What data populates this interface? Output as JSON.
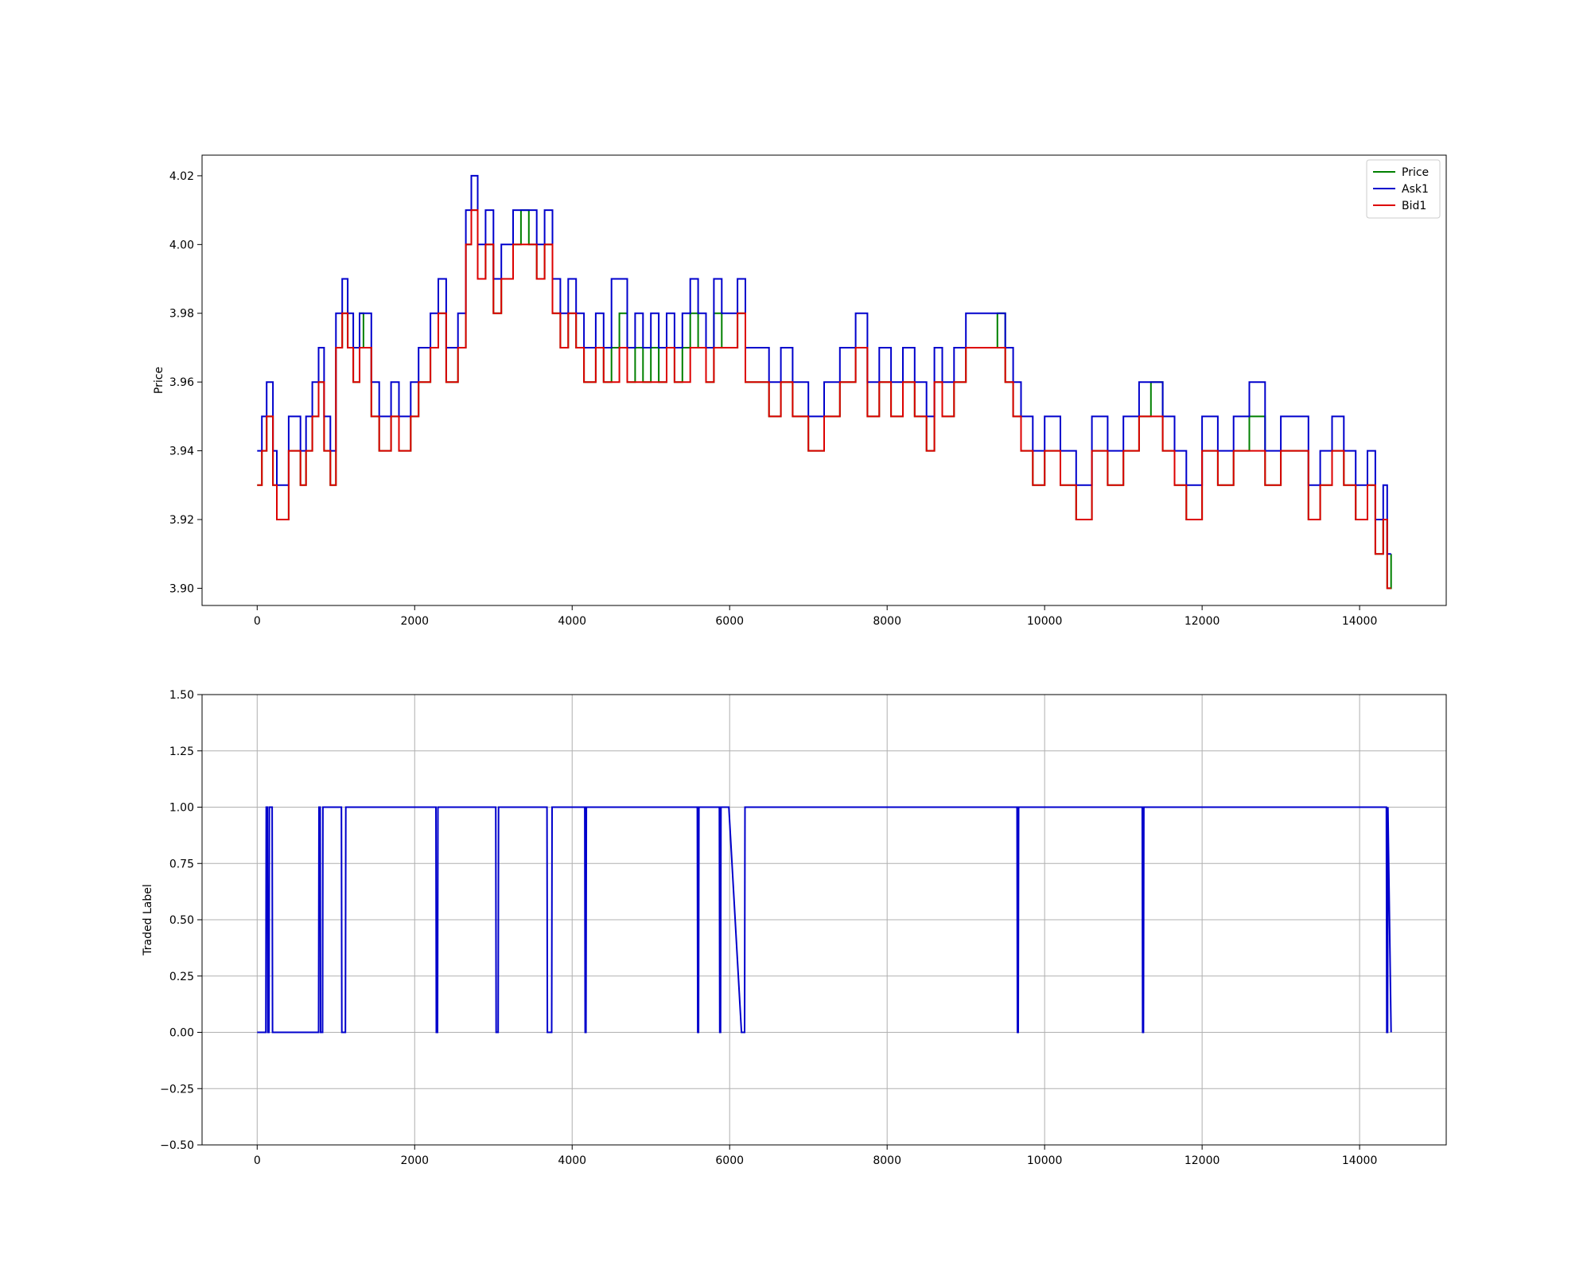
{
  "chart_data": [
    {
      "type": "line",
      "title": "",
      "xlabel": "",
      "ylabel": "Price",
      "xlim": [
        -700,
        15100
      ],
      "ylim": [
        3.895,
        4.026
      ],
      "xticks": [
        0,
        2000,
        4000,
        6000,
        8000,
        10000,
        12000,
        14000
      ],
      "xtick_labels": [
        "0",
        "2000",
        "4000",
        "6000",
        "8000",
        "10000",
        "12000",
        "14000"
      ],
      "yticks": [
        3.9,
        3.92,
        3.94,
        3.96,
        3.98,
        4.0,
        4.02
      ],
      "ytick_labels": [
        "3.90",
        "3.92",
        "3.94",
        "3.96",
        "3.98",
        "4.00",
        "4.02"
      ],
      "grid": false,
      "legend": "top-right",
      "line_style": "steps",
      "series": [
        {
          "name": "Price",
          "color": "#008000",
          "x": [
            0,
            60,
            120,
            200,
            250,
            400,
            550,
            620,
            700,
            780,
            850,
            930,
            1000,
            1080,
            1150,
            1220,
            1300,
            1350,
            1450,
            1550,
            1700,
            1800,
            1950,
            2050,
            2200,
            2300,
            2400,
            2550,
            2650,
            2720,
            2800,
            2900,
            3000,
            3100,
            3250,
            3350,
            3450,
            3550,
            3650,
            3750,
            3850,
            3950,
            4050,
            4150,
            4300,
            4400,
            4500,
            4600,
            4700,
            4800,
            4900,
            5000,
            5100,
            5200,
            5300,
            5400,
            5500,
            5600,
            5700,
            5800,
            5900,
            6000,
            6100,
            6200,
            6350,
            6500,
            6650,
            6800,
            7000,
            7200,
            7400,
            7600,
            7750,
            7900,
            8050,
            8200,
            8350,
            8500,
            8600,
            8700,
            8850,
            9000,
            9200,
            9400,
            9500,
            9600,
            9700,
            9850,
            10000,
            10200,
            10400,
            10600,
            10800,
            11000,
            11200,
            11350,
            11500,
            11650,
            11800,
            12000,
            12200,
            12400,
            12600,
            12800,
            13000,
            13200,
            13350,
            13500,
            13650,
            13800,
            13950,
            14100,
            14200,
            14300,
            14350,
            14400
          ],
          "y": [
            3.93,
            3.94,
            3.95,
            3.93,
            3.92,
            3.94,
            3.93,
            3.94,
            3.95,
            3.96,
            3.94,
            3.93,
            3.97,
            3.98,
            3.97,
            3.96,
            3.98,
            3.97,
            3.95,
            3.94,
            3.95,
            3.94,
            3.95,
            3.96,
            3.97,
            3.98,
            3.96,
            3.97,
            4.0,
            4.01,
            3.99,
            4.0,
            3.98,
            3.99,
            4.0,
            4.01,
            4.0,
            3.99,
            4.0,
            3.98,
            3.97,
            3.98,
            3.97,
            3.96,
            3.97,
            3.96,
            3.97,
            3.98,
            3.96,
            3.97,
            3.96,
            3.97,
            3.96,
            3.97,
            3.96,
            3.97,
            3.98,
            3.97,
            3.96,
            3.98,
            3.97,
            3.97,
            3.98,
            3.96,
            3.96,
            3.95,
            3.96,
            3.95,
            3.94,
            3.95,
            3.96,
            3.97,
            3.95,
            3.96,
            3.95,
            3.96,
            3.95,
            3.94,
            3.96,
            3.95,
            3.96,
            3.97,
            3.97,
            3.98,
            3.96,
            3.95,
            3.94,
            3.93,
            3.94,
            3.93,
            3.92,
            3.94,
            3.93,
            3.94,
            3.95,
            3.96,
            3.94,
            3.93,
            3.92,
            3.94,
            3.93,
            3.94,
            3.95,
            3.93,
            3.94,
            3.94,
            3.92,
            3.93,
            3.94,
            3.93,
            3.92,
            3.93,
            3.91,
            3.92,
            3.9,
            3.91
          ]
        },
        {
          "name": "Ask1",
          "color": "#0000cc",
          "x": [
            0,
            60,
            120,
            200,
            250,
            400,
            550,
            620,
            700,
            780,
            850,
            930,
            1000,
            1080,
            1150,
            1220,
            1300,
            1350,
            1450,
            1550,
            1700,
            1800,
            1950,
            2050,
            2200,
            2300,
            2400,
            2550,
            2650,
            2720,
            2800,
            2900,
            3000,
            3100,
            3250,
            3350,
            3450,
            3550,
            3650,
            3750,
            3850,
            3950,
            4050,
            4150,
            4300,
            4400,
            4500,
            4600,
            4700,
            4800,
            4900,
            5000,
            5100,
            5200,
            5300,
            5400,
            5500,
            5600,
            5700,
            5800,
            5900,
            6000,
            6100,
            6200,
            6350,
            6500,
            6650,
            6800,
            7000,
            7200,
            7400,
            7600,
            7750,
            7900,
            8050,
            8200,
            8350,
            8500,
            8600,
            8700,
            8850,
            9000,
            9200,
            9400,
            9500,
            9600,
            9700,
            9850,
            10000,
            10200,
            10400,
            10600,
            10800,
            11000,
            11200,
            11350,
            11500,
            11650,
            11800,
            12000,
            12200,
            12400,
            12600,
            12800,
            13000,
            13200,
            13350,
            13500,
            13650,
            13800,
            13950,
            14100,
            14200,
            14300,
            14350,
            14400
          ],
          "y": [
            3.94,
            3.95,
            3.96,
            3.94,
            3.93,
            3.95,
            3.94,
            3.95,
            3.96,
            3.97,
            3.95,
            3.94,
            3.98,
            3.99,
            3.98,
            3.97,
            3.98,
            3.98,
            3.96,
            3.95,
            3.96,
            3.95,
            3.96,
            3.97,
            3.98,
            3.99,
            3.97,
            3.98,
            4.01,
            4.02,
            4.0,
            4.01,
            3.99,
            4.0,
            4.01,
            4.01,
            4.01,
            4.0,
            4.01,
            3.99,
            3.98,
            3.99,
            3.98,
            3.97,
            3.98,
            3.97,
            3.99,
            3.99,
            3.97,
            3.98,
            3.97,
            3.98,
            3.97,
            3.98,
            3.97,
            3.98,
            3.99,
            3.98,
            3.97,
            3.99,
            3.98,
            3.98,
            3.99,
            3.97,
            3.97,
            3.96,
            3.97,
            3.96,
            3.95,
            3.96,
            3.97,
            3.98,
            3.96,
            3.97,
            3.96,
            3.97,
            3.96,
            3.95,
            3.97,
            3.96,
            3.97,
            3.98,
            3.98,
            3.98,
            3.97,
            3.96,
            3.95,
            3.94,
            3.95,
            3.94,
            3.93,
            3.95,
            3.94,
            3.95,
            3.96,
            3.96,
            3.95,
            3.94,
            3.93,
            3.95,
            3.94,
            3.95,
            3.96,
            3.94,
            3.95,
            3.95,
            3.93,
            3.94,
            3.95,
            3.94,
            3.93,
            3.94,
            3.92,
            3.93,
            3.91,
            3.91
          ]
        },
        {
          "name": "Bid1",
          "color": "#dd0000",
          "x": [
            0,
            60,
            120,
            200,
            250,
            400,
            550,
            620,
            700,
            780,
            850,
            930,
            1000,
            1080,
            1150,
            1220,
            1300,
            1350,
            1450,
            1550,
            1700,
            1800,
            1950,
            2050,
            2200,
            2300,
            2400,
            2550,
            2650,
            2720,
            2800,
            2900,
            3000,
            3100,
            3250,
            3350,
            3450,
            3550,
            3650,
            3750,
            3850,
            3950,
            4050,
            4150,
            4300,
            4400,
            4500,
            4600,
            4700,
            4800,
            4900,
            5000,
            5100,
            5200,
            5300,
            5400,
            5500,
            5600,
            5700,
            5800,
            5900,
            6000,
            6100,
            6200,
            6350,
            6500,
            6650,
            6800,
            7000,
            7200,
            7400,
            7600,
            7750,
            7900,
            8050,
            8200,
            8350,
            8500,
            8600,
            8700,
            8850,
            9000,
            9200,
            9400,
            9500,
            9600,
            9700,
            9850,
            10000,
            10200,
            10400,
            10600,
            10800,
            11000,
            11200,
            11350,
            11500,
            11650,
            11800,
            12000,
            12200,
            12400,
            12600,
            12800,
            13000,
            13200,
            13350,
            13500,
            13650,
            13800,
            13950,
            14100,
            14200,
            14300,
            14350,
            14400
          ],
          "y": [
            3.93,
            3.94,
            3.95,
            3.93,
            3.92,
            3.94,
            3.93,
            3.94,
            3.95,
            3.96,
            3.94,
            3.93,
            3.97,
            3.98,
            3.97,
            3.96,
            3.97,
            3.97,
            3.95,
            3.94,
            3.95,
            3.94,
            3.95,
            3.96,
            3.97,
            3.98,
            3.96,
            3.97,
            4.0,
            4.01,
            3.99,
            4.0,
            3.98,
            3.99,
            4.0,
            4.0,
            4.0,
            3.99,
            4.0,
            3.98,
            3.97,
            3.98,
            3.97,
            3.96,
            3.97,
            3.96,
            3.96,
            3.97,
            3.96,
            3.96,
            3.96,
            3.96,
            3.96,
            3.97,
            3.96,
            3.96,
            3.97,
            3.97,
            3.96,
            3.97,
            3.97,
            3.97,
            3.98,
            3.96,
            3.96,
            3.95,
            3.96,
            3.95,
            3.94,
            3.95,
            3.96,
            3.97,
            3.95,
            3.96,
            3.95,
            3.96,
            3.95,
            3.94,
            3.96,
            3.95,
            3.96,
            3.97,
            3.97,
            3.97,
            3.96,
            3.95,
            3.94,
            3.93,
            3.94,
            3.93,
            3.92,
            3.94,
            3.93,
            3.94,
            3.95,
            3.95,
            3.94,
            3.93,
            3.92,
            3.94,
            3.93,
            3.94,
            3.94,
            3.93,
            3.94,
            3.94,
            3.92,
            3.93,
            3.94,
            3.93,
            3.92,
            3.93,
            3.91,
            3.92,
            3.9,
            3.9
          ]
        }
      ]
    },
    {
      "type": "line",
      "title": "",
      "xlabel": "",
      "ylabel": "Traded Label",
      "xlim": [
        -700,
        15100
      ],
      "ylim": [
        -0.5,
        1.5
      ],
      "xticks": [
        0,
        2000,
        4000,
        6000,
        8000,
        10000,
        12000,
        14000
      ],
      "xtick_labels": [
        "0",
        "2000",
        "4000",
        "6000",
        "8000",
        "10000",
        "12000",
        "14000"
      ],
      "yticks": [
        -0.5,
        -0.25,
        0.0,
        0.25,
        0.5,
        0.75,
        1.0,
        1.25,
        1.5
      ],
      "ytick_labels": [
        "−0.50",
        "−0.25",
        "0.00",
        "0.25",
        "0.50",
        "0.75",
        "1.00",
        "1.25",
        "1.50"
      ],
      "grid": true,
      "line_style": "linear",
      "series": [
        {
          "color": "#0000cc",
          "x": [
            0,
            110,
            115,
            130,
            135,
            150,
            155,
            190,
            195,
            780,
            785,
            800,
            805,
            830,
            835,
            1070,
            1075,
            1120,
            1125,
            2270,
            2275,
            2290,
            2295,
            3030,
            3035,
            3060,
            3065,
            3680,
            3685,
            3740,
            3745,
            4160,
            4165,
            4175,
            4180,
            5590,
            5595,
            5605,
            5610,
            5870,
            5875,
            5885,
            5890,
            5990,
            6150,
            6190,
            6195,
            9650,
            9655,
            9665,
            9670,
            11240,
            11245,
            11255,
            11260,
            14340,
            14345,
            14355,
            14360,
            14400
          ],
          "y": [
            0,
            0,
            1,
            1,
            0,
            0,
            1,
            1,
            0,
            0,
            1,
            1,
            0,
            0,
            1,
            1,
            0,
            0,
            1,
            1,
            0,
            0,
            1,
            1,
            0,
            0,
            1,
            1,
            0,
            0,
            1,
            1,
            0,
            0,
            1,
            1,
            0,
            0,
            1,
            1,
            0,
            0,
            1,
            1,
            0,
            0,
            1,
            1,
            0,
            0,
            1,
            1,
            0,
            0,
            1,
            1,
            0,
            0,
            1,
            0
          ]
        }
      ]
    }
  ]
}
